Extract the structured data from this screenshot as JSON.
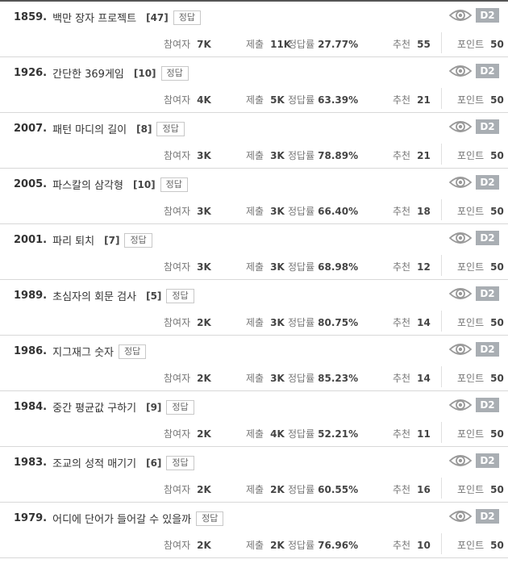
{
  "labels": {
    "participants": "참여자",
    "submissions": "제출",
    "accuracy": "정답률",
    "recommend": "추천",
    "points": "포인트",
    "answer_button": "정답"
  },
  "colors": {
    "level_badge": "#a9aeb3",
    "top_border": "#555555"
  },
  "problems": [
    {
      "number": "1859.",
      "title": "백만 장자 프로젝트",
      "count": "[47]",
      "level": "D2",
      "participants": "7K",
      "submissions": "11K",
      "accuracy": "27.77%",
      "recommend": "55",
      "points": "50"
    },
    {
      "number": "1926.",
      "title": "간단한 369게임",
      "count": "[10]",
      "level": "D2",
      "participants": "4K",
      "submissions": "5K",
      "accuracy": "63.39%",
      "recommend": "21",
      "points": "50"
    },
    {
      "number": "2007.",
      "title": "패턴 마디의 길이",
      "count": "[8]",
      "level": "D2",
      "participants": "3K",
      "submissions": "3K",
      "accuracy": "78.89%",
      "recommend": "21",
      "points": "50"
    },
    {
      "number": "2005.",
      "title": "파스칼의 삼각형",
      "count": "[10]",
      "level": "D2",
      "participants": "3K",
      "submissions": "3K",
      "accuracy": "66.40%",
      "recommend": "18",
      "points": "50"
    },
    {
      "number": "2001.",
      "title": "파리 퇴치",
      "count": "[7]",
      "level": "D2",
      "participants": "3K",
      "submissions": "3K",
      "accuracy": "68.98%",
      "recommend": "12",
      "points": "50"
    },
    {
      "number": "1989.",
      "title": "초심자의 회문 검사",
      "count": "[5]",
      "level": "D2",
      "participants": "2K",
      "submissions": "3K",
      "accuracy": "80.75%",
      "recommend": "14",
      "points": "50"
    },
    {
      "number": "1986.",
      "title": "지그재그 숫자",
      "count": "",
      "level": "D2",
      "participants": "2K",
      "submissions": "3K",
      "accuracy": "85.23%",
      "recommend": "14",
      "points": "50"
    },
    {
      "number": "1984.",
      "title": "중간 평균값 구하기",
      "count": "[9]",
      "level": "D2",
      "participants": "2K",
      "submissions": "4K",
      "accuracy": "52.21%",
      "recommend": "11",
      "points": "50"
    },
    {
      "number": "1983.",
      "title": "조교의 성적 매기기",
      "count": "[6]",
      "level": "D2",
      "participants": "2K",
      "submissions": "2K",
      "accuracy": "60.55%",
      "recommend": "16",
      "points": "50"
    },
    {
      "number": "1979.",
      "title": "어디에 단어가 들어갈 수 있을까",
      "count": "",
      "level": "D2",
      "participants": "2K",
      "submissions": "2K",
      "accuracy": "76.96%",
      "recommend": "10",
      "points": "50"
    }
  ]
}
